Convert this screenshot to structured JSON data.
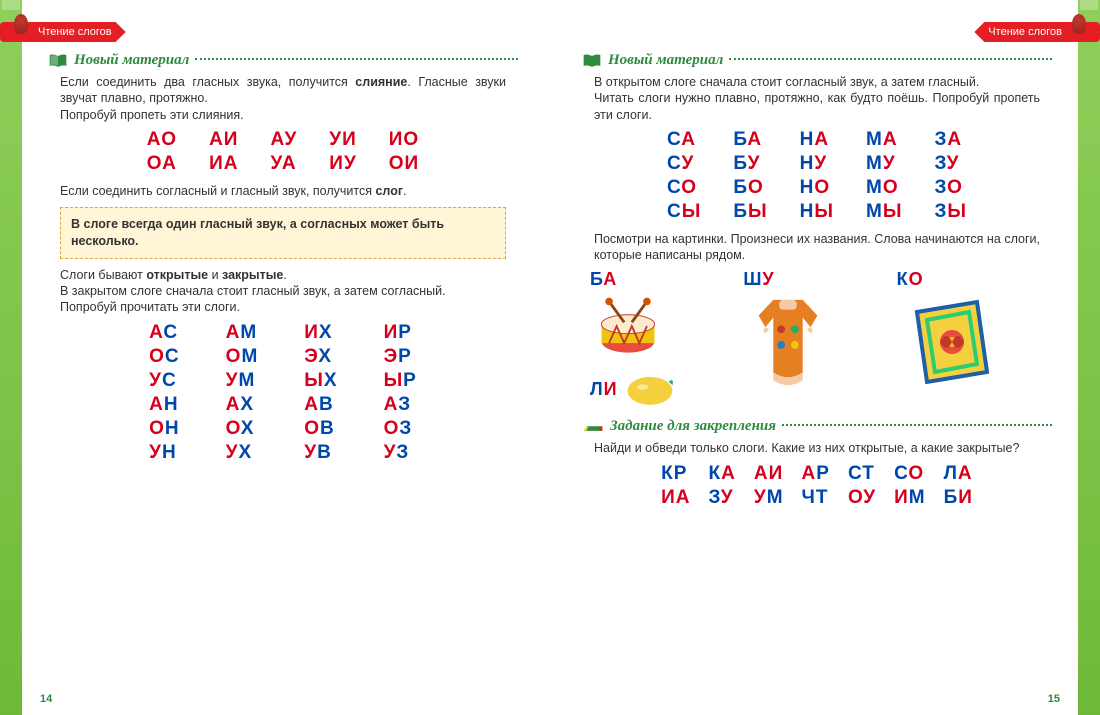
{
  "breadcrumb": "Чтение слогов",
  "pageLeftNum": "14",
  "pageRightNum": "15",
  "section": {
    "newMaterial": "Новый материал",
    "exercise": "Задание для закрепления"
  },
  "left": {
    "intro1": "Если соединить два гласных звука, получится ",
    "intro1b": "слияние",
    "intro1c": ". Гласные звуки звучат плавно, протяжно.",
    "intro2": "Попробуй пропеть эти слияния.",
    "vowelPairs": [
      [
        "АО",
        "АИ",
        "АУ",
        "УИ",
        "ИО"
      ],
      [
        "ОА",
        "ИА",
        "УА",
        "ИУ",
        "ОИ"
      ]
    ],
    "slogText1": "Если соединить согласный и гласный звук, получится ",
    "slogText1b": "слог",
    "hlBox1": "В слоге всегда один гласный звук, а согласных может быть несколько.",
    "openClosed1a": "Слоги бывают ",
    "openClosed1b": "открытые",
    "openClosed1c": " и ",
    "openClosed1d": "закрытые",
    "openClosed2": "В закрытом слоге сначала стоит гласный звук, а затем согласный.",
    "openClosed3": "Попробуй прочитать эти слоги.",
    "closedSylls": [
      [
        [
          "А",
          "С"
        ],
        [
          "А",
          "М"
        ],
        [
          "И",
          "Х"
        ],
        [
          "И",
          "Р"
        ]
      ],
      [
        [
          "О",
          "С"
        ],
        [
          "О",
          "М"
        ],
        [
          "Э",
          "Х"
        ],
        [
          "Э",
          "Р"
        ]
      ],
      [
        [
          "У",
          "С"
        ],
        [
          "У",
          "М"
        ],
        [
          "Ы",
          "Х"
        ],
        [
          "Ы",
          "Р"
        ]
      ],
      [
        [
          "А",
          "Н"
        ],
        [
          "А",
          "Х"
        ],
        [
          "А",
          "В"
        ],
        [
          "А",
          "З"
        ]
      ],
      [
        [
          "О",
          "Н"
        ],
        [
          "О",
          "Х"
        ],
        [
          "О",
          "В"
        ],
        [
          "О",
          "З"
        ]
      ],
      [
        [
          "У",
          "Н"
        ],
        [
          "У",
          "Х"
        ],
        [
          "У",
          "В"
        ],
        [
          "У",
          "З"
        ]
      ]
    ]
  },
  "right": {
    "intro1": "В открытом слоге сначала стоит согласный звук, а затем гласный.",
    "intro2": "Читать слоги нужно плавно, протяжно, как будто поёшь. Попробуй пропеть эти слоги.",
    "openSylls": [
      [
        [
          "С",
          "А"
        ],
        [
          "Б",
          "А"
        ],
        [
          "Н",
          "А"
        ],
        [
          "М",
          "А"
        ],
        [
          "З",
          "А"
        ]
      ],
      [
        [
          "С",
          "У"
        ],
        [
          "Б",
          "У"
        ],
        [
          "Н",
          "У"
        ],
        [
          "М",
          "У"
        ],
        [
          "З",
          "У"
        ]
      ],
      [
        [
          "С",
          "О"
        ],
        [
          "Б",
          "О"
        ],
        [
          "Н",
          "О"
        ],
        [
          "М",
          "О"
        ],
        [
          "З",
          "О"
        ]
      ],
      [
        [
          "С",
          "Ы"
        ],
        [
          "Б",
          "Ы"
        ],
        [
          "Н",
          "Ы"
        ],
        [
          "М",
          "Ы"
        ],
        [
          "З",
          "Ы"
        ]
      ]
    ],
    "picText": "Посмотри на картинки. Произнеси их названия. Слова начинаются на слоги, которые написаны рядом.",
    "pics": {
      "ba": [
        [
          "Б",
          "А"
        ]
      ],
      "shu": [
        [
          "Ш",
          "У"
        ]
      ],
      "ko": [
        [
          "К",
          "О"
        ]
      ],
      "li": [
        [
          "Л",
          "И"
        ]
      ]
    },
    "exerciseText": "Найди и обведи только слоги. Какие из них открытые, а какие закрытые?",
    "exRows": [
      [
        [
          "К",
          "Р"
        ],
        [
          "К",
          "А"
        ],
        [
          "А",
          "И"
        ],
        [
          "А",
          "Р"
        ],
        [
          "С",
          "Т"
        ],
        [
          "С",
          "О"
        ],
        [
          "Л",
          "А"
        ]
      ],
      [
        [
          "И",
          "А"
        ],
        [
          "З",
          "У"
        ],
        [
          "У",
          "М"
        ],
        [
          "Ч",
          "Т"
        ],
        [
          "О",
          "У"
        ],
        [
          "И",
          "М"
        ],
        [
          "Б",
          "И"
        ]
      ]
    ]
  },
  "colors": {
    "vowel": "#d6001c",
    "consonant": "#0047ab",
    "headerGreen": "#2e8b3e",
    "redCrumb": "#e31e24",
    "hlBg": "#fff6d8",
    "borderGreen": "#7fc24c"
  }
}
